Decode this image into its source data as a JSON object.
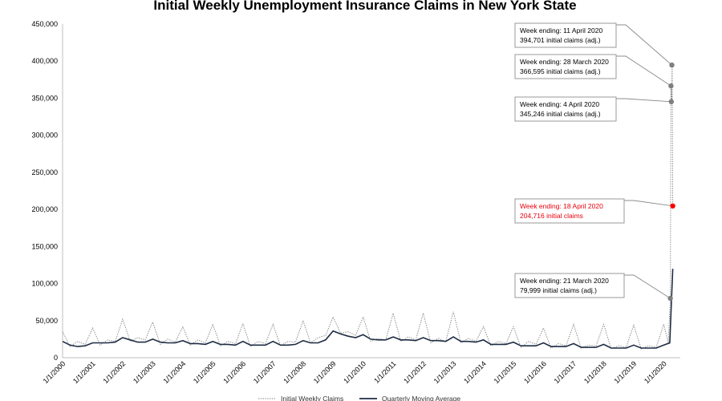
{
  "chart_data": {
    "type": "line",
    "title": "Initial Weekly Unemployment Insurance Claims in New York State",
    "xlabel": "",
    "ylabel": "",
    "ylim": [
      0,
      450000
    ],
    "y_ticks": [
      "0",
      "50,000",
      "100,000",
      "150,000",
      "200,000",
      "250,000",
      "300,000",
      "350,000",
      "400,000",
      "450,000"
    ],
    "y_tick_values": [
      0,
      50000,
      100000,
      150000,
      200000,
      250000,
      300000,
      350000,
      400000,
      450000
    ],
    "x_ticks": [
      "1/1/2000",
      "1/1/2001",
      "1/1/2002",
      "1/1/2003",
      "1/1/2004",
      "1/1/2005",
      "1/1/2006",
      "1/1/2007",
      "1/1/2008",
      "1/1/2009",
      "1/1/2010",
      "1/1/2011",
      "1/1/2012",
      "1/1/2013",
      "1/1/2014",
      "1/1/2015",
      "1/1/2016",
      "1/1/2017",
      "1/1/2018",
      "1/1/2019",
      "1/1/2020"
    ],
    "x_tick_values": [
      2000,
      2001,
      2002,
      2003,
      2004,
      2005,
      2006,
      2007,
      2008,
      2009,
      2010,
      2011,
      2012,
      2013,
      2014,
      2015,
      2016,
      2017,
      2018,
      2019,
      2020
    ],
    "xlim": [
      2000,
      2020.55
    ],
    "grid": false,
    "legend_position": "bottom",
    "series": [
      {
        "name": "Initial Weekly Claims",
        "style": "dotted",
        "color": "#7f7f7f",
        "x": [
          2000.0,
          2000.25,
          2000.5,
          2000.75,
          2001.0,
          2001.25,
          2001.5,
          2001.75,
          2002.0,
          2002.25,
          2002.5,
          2002.75,
          2003.0,
          2003.25,
          2003.5,
          2003.75,
          2004.0,
          2004.25,
          2004.5,
          2004.75,
          2005.0,
          2005.25,
          2005.5,
          2005.75,
          2006.0,
          2006.25,
          2006.5,
          2006.75,
          2007.0,
          2007.25,
          2007.5,
          2007.75,
          2008.0,
          2008.25,
          2008.5,
          2008.75,
          2009.0,
          2009.25,
          2009.5,
          2009.75,
          2010.0,
          2010.25,
          2010.5,
          2010.75,
          2011.0,
          2011.25,
          2011.5,
          2011.75,
          2012.0,
          2012.25,
          2012.5,
          2012.75,
          2013.0,
          2013.25,
          2013.5,
          2013.75,
          2014.0,
          2014.25,
          2014.5,
          2014.75,
          2015.0,
          2015.25,
          2015.5,
          2015.75,
          2016.0,
          2016.25,
          2016.5,
          2016.75,
          2017.0,
          2017.25,
          2017.5,
          2017.75,
          2018.0,
          2018.25,
          2018.5,
          2018.75,
          2019.0,
          2019.25,
          2019.5,
          2019.75,
          2020.0,
          2020.15,
          2020.22,
          2020.24,
          2020.26,
          2020.28,
          2020.3
        ],
        "values": [
          35000,
          15000,
          22000,
          18000,
          40000,
          17000,
          24000,
          22000,
          52000,
          22000,
          27000,
          24000,
          48000,
          18000,
          25000,
          21000,
          42000,
          17000,
          24000,
          20000,
          45000,
          16000,
          22000,
          19000,
          46000,
          15000,
          22000,
          19000,
          45000,
          16000,
          22000,
          21000,
          50000,
          20000,
          27000,
          30000,
          55000,
          33000,
          35000,
          30000,
          55000,
          22000,
          26000,
          24000,
          60000,
          22000,
          28000,
          24000,
          60000,
          20000,
          26000,
          22000,
          62000,
          20000,
          26000,
          22000,
          42000,
          16000,
          22000,
          19000,
          42000,
          14000,
          22000,
          18000,
          40000,
          13000,
          19000,
          16000,
          45000,
          13000,
          17000,
          16000,
          45000,
          12000,
          16000,
          14000,
          44000,
          12000,
          16000,
          14000,
          45000,
          20000,
          79999,
          366595,
          345246,
          394701,
          204716
        ]
      },
      {
        "name": "Quarterly Moving Average",
        "style": "solid",
        "color": "#1f2d44",
        "x": [
          2000.0,
          2000.25,
          2000.5,
          2000.75,
          2001.0,
          2001.25,
          2001.5,
          2001.75,
          2002.0,
          2002.25,
          2002.5,
          2002.75,
          2003.0,
          2003.25,
          2003.5,
          2003.75,
          2004.0,
          2004.25,
          2004.5,
          2004.75,
          2005.0,
          2005.25,
          2005.5,
          2005.75,
          2006.0,
          2006.25,
          2006.5,
          2006.75,
          2007.0,
          2007.25,
          2007.5,
          2007.75,
          2008.0,
          2008.25,
          2008.5,
          2008.75,
          2009.0,
          2009.25,
          2009.5,
          2009.75,
          2010.0,
          2010.25,
          2010.5,
          2010.75,
          2011.0,
          2011.25,
          2011.5,
          2011.75,
          2012.0,
          2012.25,
          2012.5,
          2012.75,
          2013.0,
          2013.25,
          2013.5,
          2013.75,
          2014.0,
          2014.25,
          2014.5,
          2014.75,
          2015.0,
          2015.25,
          2015.5,
          2015.75,
          2016.0,
          2016.25,
          2016.5,
          2016.75,
          2017.0,
          2017.25,
          2017.5,
          2017.75,
          2018.0,
          2018.25,
          2018.5,
          2018.75,
          2019.0,
          2019.25,
          2019.5,
          2019.75,
          2020.0,
          2020.2,
          2020.3
        ],
        "values": [
          22000,
          17000,
          15000,
          16000,
          20000,
          20000,
          20000,
          21000,
          27000,
          24000,
          21000,
          21000,
          25000,
          21000,
          20000,
          20000,
          23000,
          19000,
          19000,
          18000,
          22000,
          18000,
          18000,
          17000,
          22000,
          17000,
          17000,
          17000,
          22000,
          17000,
          17000,
          18000,
          23000,
          20000,
          20000,
          24000,
          36000,
          32000,
          29000,
          27000,
          31000,
          25000,
          24000,
          24000,
          28000,
          24000,
          24000,
          23000,
          27000,
          23000,
          23000,
          22000,
          28000,
          22000,
          22000,
          21000,
          24000,
          18000,
          18000,
          18000,
          21000,
          16000,
          16000,
          16000,
          20000,
          15000,
          15000,
          15000,
          19000,
          14000,
          14000,
          14000,
          18000,
          13000,
          13000,
          13000,
          17000,
          13000,
          13000,
          13000,
          17000,
          20000,
          120000
        ]
      }
    ],
    "annotations": [
      {
        "line1": "Week ending: 11 April 2020",
        "line2": "394,701 initial claims (adj.)",
        "x": 2020.27,
        "y": 394701,
        "color": "#7f7f7f",
        "highlight": false
      },
      {
        "line1": "Week ending: 28 March 2020",
        "line2": "366,595 initial claims (adj.)",
        "x": 2020.24,
        "y": 366595,
        "color": "#7f7f7f",
        "highlight": false
      },
      {
        "line1": "Week ending: 4 April 2020",
        "line2": "345,246 initial claims (adj.)",
        "x": 2020.25,
        "y": 345246,
        "color": "#7f7f7f",
        "highlight": false
      },
      {
        "line1": "Week ending: 18 April 2020",
        "line2": "204,716 initial claims",
        "x": 2020.3,
        "y": 204716,
        "color": "#ff0000",
        "highlight": true
      },
      {
        "line1": "Week ending: 21 March 2020",
        "line2": "79,999 initial claims (adj.)",
        "x": 2020.22,
        "y": 79999,
        "color": "#7f7f7f",
        "highlight": false
      }
    ]
  }
}
